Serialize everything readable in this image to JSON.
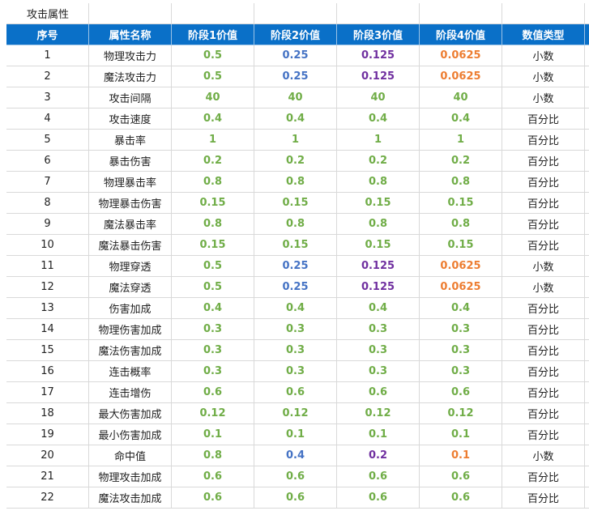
{
  "sheet": {
    "title": "攻击属性",
    "headers": [
      "序号",
      "属性名称",
      "阶段1价值",
      "阶段2价值",
      "阶段3价值",
      "阶段4价值",
      "数值类型"
    ],
    "rows": [
      {
        "cells": [
          1,
          "物理攻击力",
          0.5,
          0.25,
          0.125,
          0.0625,
          "小数"
        ],
        "colors": [
          "#70ad47",
          "#4472c4",
          "#7030a0",
          "#ed7d31"
        ]
      },
      {
        "cells": [
          2,
          "魔法攻击力",
          0.5,
          0.25,
          0.125,
          0.0625,
          "小数"
        ],
        "colors": [
          "#70ad47",
          "#4472c4",
          "#7030a0",
          "#ed7d31"
        ]
      },
      {
        "cells": [
          3,
          "攻击间隔",
          40,
          40,
          40,
          40,
          "小数"
        ],
        "colors": [
          "#70ad47",
          "#70ad47",
          "#70ad47",
          "#70ad47"
        ]
      },
      {
        "cells": [
          4,
          "攻击速度",
          0.4,
          0.4,
          0.4,
          0.4,
          "百分比"
        ],
        "colors": [
          "#70ad47",
          "#70ad47",
          "#70ad47",
          "#70ad47"
        ]
      },
      {
        "cells": [
          5,
          "暴击率",
          1,
          1,
          1,
          1,
          "百分比"
        ],
        "colors": [
          "#70ad47",
          "#70ad47",
          "#70ad47",
          "#70ad47"
        ]
      },
      {
        "cells": [
          6,
          "暴击伤害",
          0.2,
          0.2,
          0.2,
          0.2,
          "百分比"
        ],
        "colors": [
          "#70ad47",
          "#70ad47",
          "#70ad47",
          "#70ad47"
        ]
      },
      {
        "cells": [
          7,
          "物理暴击率",
          0.8,
          0.8,
          0.8,
          0.8,
          "百分比"
        ],
        "colors": [
          "#70ad47",
          "#70ad47",
          "#70ad47",
          "#70ad47"
        ]
      },
      {
        "cells": [
          8,
          "物理暴击伤害",
          0.15,
          0.15,
          0.15,
          0.15,
          "百分比"
        ],
        "colors": [
          "#70ad47",
          "#70ad47",
          "#70ad47",
          "#70ad47"
        ]
      },
      {
        "cells": [
          9,
          "魔法暴击率",
          0.8,
          0.8,
          0.8,
          0.8,
          "百分比"
        ],
        "colors": [
          "#70ad47",
          "#70ad47",
          "#70ad47",
          "#70ad47"
        ]
      },
      {
        "cells": [
          10,
          "魔法暴击伤害",
          0.15,
          0.15,
          0.15,
          0.15,
          "百分比"
        ],
        "colors": [
          "#70ad47",
          "#70ad47",
          "#70ad47",
          "#70ad47"
        ]
      },
      {
        "cells": [
          11,
          "物理穿透",
          0.5,
          0.25,
          0.125,
          0.0625,
          "小数"
        ],
        "colors": [
          "#70ad47",
          "#4472c4",
          "#7030a0",
          "#ed7d31"
        ]
      },
      {
        "cells": [
          12,
          "魔法穿透",
          0.5,
          0.25,
          0.125,
          0.0625,
          "小数"
        ],
        "colors": [
          "#70ad47",
          "#4472c4",
          "#7030a0",
          "#ed7d31"
        ]
      },
      {
        "cells": [
          13,
          "伤害加成",
          0.4,
          0.4,
          0.4,
          0.4,
          "百分比"
        ],
        "colors": [
          "#70ad47",
          "#70ad47",
          "#70ad47",
          "#70ad47"
        ]
      },
      {
        "cells": [
          14,
          "物理伤害加成",
          0.3,
          0.3,
          0.3,
          0.3,
          "百分比"
        ],
        "colors": [
          "#70ad47",
          "#70ad47",
          "#70ad47",
          "#70ad47"
        ]
      },
      {
        "cells": [
          15,
          "魔法伤害加成",
          0.3,
          0.3,
          0.3,
          0.3,
          "百分比"
        ],
        "colors": [
          "#70ad47",
          "#70ad47",
          "#70ad47",
          "#70ad47"
        ]
      },
      {
        "cells": [
          16,
          "连击概率",
          0.3,
          0.3,
          0.3,
          0.3,
          "百分比"
        ],
        "colors": [
          "#70ad47",
          "#70ad47",
          "#70ad47",
          "#70ad47"
        ]
      },
      {
        "cells": [
          17,
          "连击增伤",
          0.6,
          0.6,
          0.6,
          0.6,
          "百分比"
        ],
        "colors": [
          "#70ad47",
          "#70ad47",
          "#70ad47",
          "#70ad47"
        ]
      },
      {
        "cells": [
          18,
          "最大伤害加成",
          0.12,
          0.12,
          0.12,
          0.12,
          "百分比"
        ],
        "colors": [
          "#70ad47",
          "#70ad47",
          "#70ad47",
          "#70ad47"
        ]
      },
      {
        "cells": [
          19,
          "最小伤害加成",
          0.1,
          0.1,
          0.1,
          0.1,
          "百分比"
        ],
        "colors": [
          "#70ad47",
          "#70ad47",
          "#70ad47",
          "#70ad47"
        ]
      },
      {
        "cells": [
          20,
          "命中值",
          0.8,
          0.4,
          0.2,
          0.1,
          "小数"
        ],
        "colors": [
          "#70ad47",
          "#4472c4",
          "#7030a0",
          "#ed7d31"
        ]
      },
      {
        "cells": [
          21,
          "物理攻击加成",
          0.6,
          0.6,
          0.6,
          0.6,
          "百分比"
        ],
        "colors": [
          "#70ad47",
          "#70ad47",
          "#70ad47",
          "#70ad47"
        ]
      },
      {
        "cells": [
          22,
          "魔法攻击加成",
          0.6,
          0.6,
          0.6,
          0.6,
          "百分比"
        ],
        "colors": [
          "#70ad47",
          "#70ad47",
          "#70ad47",
          "#70ad47"
        ]
      }
    ]
  }
}
